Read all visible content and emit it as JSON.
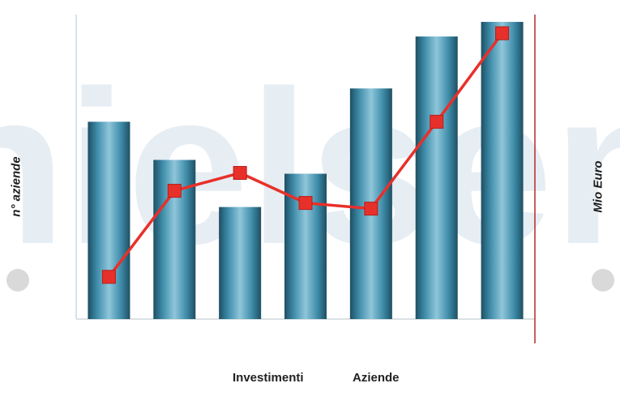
{
  "watermark": {
    "text": "nielsen",
    "color": "#c9d9e6"
  },
  "chart_data": {
    "type": "bar",
    "categories": [
      "",
      "",
      "",
      "",
      "",
      "",
      ""
    ],
    "series": [
      {
        "name": "Investimenti",
        "type": "bar",
        "axis": "left",
        "color": "#2f7f9c",
        "values": [
          243,
          196,
          138,
          179,
          284,
          348,
          366
        ]
      },
      {
        "name": "Aziende",
        "type": "line",
        "axis": "right",
        "color": "#e8302a",
        "values": [
          52,
          158,
          180,
          143,
          136,
          243,
          352
        ]
      }
    ],
    "ylabel": "n° aziende",
    "y2label": "Mio Euro",
    "ylim": [
      0,
      375
    ],
    "y2lim": [
      0,
      375
    ],
    "grid": false,
    "legend_position": "bottom"
  }
}
